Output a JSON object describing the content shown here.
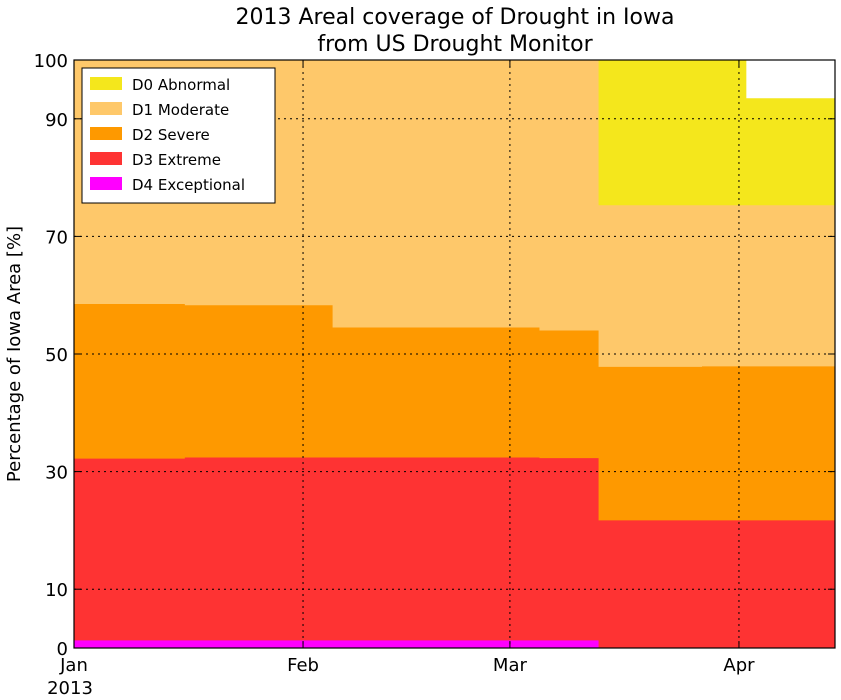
{
  "chart_data": {
    "type": "area",
    "title": [
      "2013 Areal coverage of Drought in Iowa",
      "from US Drought Monitor"
    ],
    "ylabel": "Percentage of Iowa Area [%]",
    "xlabel": "",
    "xlim": [
      "2013-01-01",
      "2013-04-14"
    ],
    "ylim": [
      0,
      100
    ],
    "yticks": [
      0,
      10,
      30,
      50,
      70,
      90,
      100
    ],
    "xticks": [
      {
        "date": "2013-01-01",
        "label": "Jan",
        "sublabel": "2013"
      },
      {
        "date": "2013-02-01",
        "label": "Feb",
        "sublabel": ""
      },
      {
        "date": "2013-03-01",
        "label": "Mar",
        "sublabel": ""
      },
      {
        "date": "2013-04-01",
        "label": "Apr",
        "sublabel": ""
      }
    ],
    "grid": true,
    "legend_position": "top-left",
    "step": "post",
    "dates": [
      "2013-01-01",
      "2013-01-16",
      "2013-02-05",
      "2013-03-05",
      "2013-03-13",
      "2013-03-27",
      "2013-04-02"
    ],
    "series": [
      {
        "name": "D0 Abnormal",
        "color": "#f4e71c",
        "values": [
          100,
          100,
          100,
          100,
          100,
          100,
          93.5
        ]
      },
      {
        "name": "D1 Moderate",
        "color": "#fec86a",
        "values": [
          100,
          100,
          100,
          100,
          75.3,
          75.3,
          75.3
        ]
      },
      {
        "name": "D2 Severe",
        "color": "#fe9900",
        "values": [
          58.5,
          58.3,
          54.5,
          54.0,
          47.8,
          47.9,
          47.9
        ]
      },
      {
        "name": "D3 Extreme",
        "color": "#fe3333",
        "values": [
          32.2,
          32.4,
          32.4,
          32.3,
          21.7,
          21.7,
          21.7
        ]
      },
      {
        "name": "D4 Exceptional",
        "color": "#ff00ff",
        "values": [
          1.3,
          1.3,
          1.3,
          1.3,
          0,
          0,
          0
        ]
      }
    ]
  }
}
